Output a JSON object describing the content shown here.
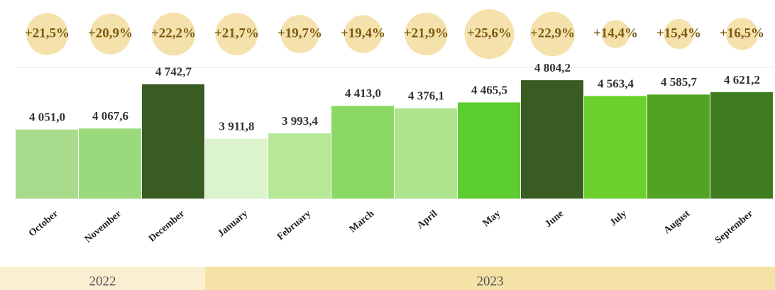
{
  "chart_data": {
    "type": "bar",
    "categories": [
      "October",
      "November",
      "December",
      "January",
      "February",
      "March",
      "April",
      "May",
      "June",
      "July",
      "August",
      "September"
    ],
    "values": [
      4051.0,
      4067.6,
      4742.7,
      3911.8,
      3993.4,
      4413.0,
      4376.1,
      4465.5,
      4804.2,
      4563.4,
      4585.7,
      4621.2
    ],
    "value_labels": [
      "4 051,0",
      "4 067,6",
      "4 742,7",
      "3 911,8",
      "3 993,4",
      "4 413,0",
      "4 376,1",
      "4 465,5",
      "4 804,2",
      "4 563,4",
      "4 585,7",
      "4 621,2"
    ],
    "colors": [
      "#a8dc8c",
      "#9ada7c",
      "#385c22",
      "#dcf4cc",
      "#b6e898",
      "#8cd864",
      "#aee48c",
      "#5ccd2e",
      "#385c22",
      "#6cd02c",
      "#52a224",
      "#3f7c1f"
    ],
    "ylim": [
      3000,
      5000
    ],
    "growth": {
      "values": [
        21.5,
        20.9,
        22.2,
        21.7,
        19.7,
        19.4,
        21.9,
        25.6,
        22.9,
        14.4,
        15.4,
        16.5
      ],
      "value_labels": [
        "+21,5%",
        "+20,9%",
        "+22,2%",
        "+21,7%",
        "+19,7%",
        "+19,4%",
        "+21,9%",
        "+25,6%",
        "+22,9%",
        "+14,4%",
        "+15,4%",
        "+16,5%"
      ],
      "color": "#f3dc9c"
    },
    "year_groups": [
      {
        "label": "2022",
        "start": "October",
        "end": "December",
        "color": "#fbefd2"
      },
      {
        "label": "2023",
        "start": "January",
        "end": "September",
        "color": "#f5e2a6"
      }
    ]
  }
}
